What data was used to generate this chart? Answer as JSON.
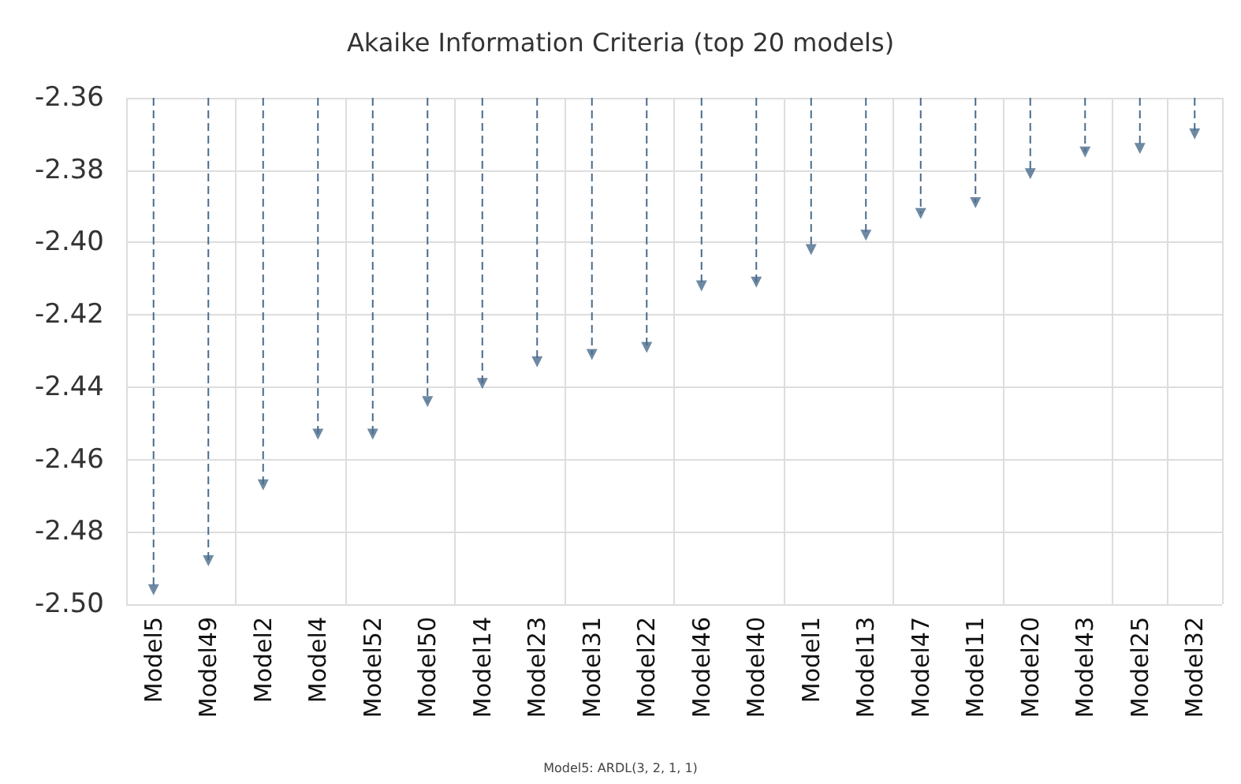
{
  "chart_data": {
    "type": "lollipop",
    "title": "Akaike Information Criteria (top 20 models)",
    "categories": [
      "Model5",
      "Model49",
      "Model2",
      "Model4",
      "Model52",
      "Model50",
      "Model14",
      "Model23",
      "Model31",
      "Model22",
      "Model46",
      "Model40",
      "Model1",
      "Model13",
      "Model47",
      "Model11",
      "Model20",
      "Model43",
      "Model25",
      "Model32"
    ],
    "series": [
      {
        "color": "#4a6b8c",
        "values": [
          -2.496,
          -2.488,
          -2.467,
          -2.453,
          -2.453,
          -2.444,
          -2.439,
          -2.433,
          -2.431,
          -2.429,
          -2.412,
          -2.411,
          -2.402,
          -2.398,
          -2.392,
          -2.389,
          -2.381,
          -2.375,
          -2.374,
          -2.37
        ]
      }
    ],
    "ylim": [
      -2.5,
      -2.36
    ],
    "yticks": [
      {
        "value": -2.5,
        "label": "-2.50"
      },
      {
        "value": -2.48,
        "label": "-2.48"
      },
      {
        "value": -2.46,
        "label": "-2.46"
      },
      {
        "value": -2.44,
        "label": "-2.44"
      },
      {
        "value": -2.42,
        "label": "-2.42"
      },
      {
        "value": -2.4,
        "label": "-2.40"
      },
      {
        "value": -2.38,
        "label": "-2.38"
      },
      {
        "value": -2.36,
        "label": "-2.36"
      }
    ],
    "grid": true,
    "marker": "triangle",
    "line_style": "dashed",
    "annotations": [
      "Model5: ARDL(3, 2, 1, 1)"
    ]
  }
}
